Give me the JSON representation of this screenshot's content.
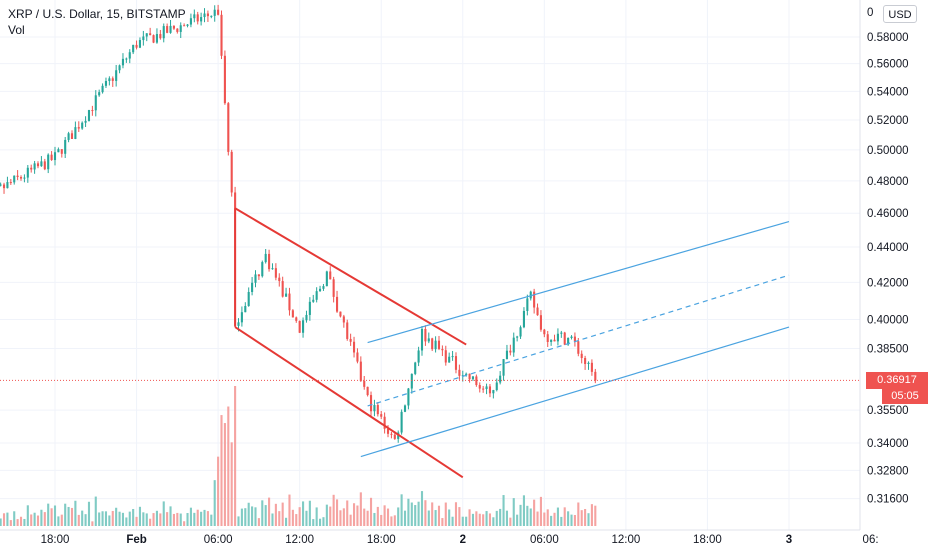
{
  "header": {
    "symbol_line": "XRP / U.S. Dollar, 15, BITSTAMP",
    "volume_label": "Vol"
  },
  "currency_button": "USD",
  "current_price_label": "0.36917",
  "countdown_label": "05:05",
  "colors": {
    "up": "#26a69a",
    "down": "#ef5350",
    "up_volume": "#80cbc4",
    "down_volume": "#f5a3a1",
    "falling_channel": "#e53935",
    "rising_channel": "#4aa3e0",
    "price_line": "#ef5350"
  },
  "chart_data": {
    "type": "candlestick",
    "y_axis": {
      "scale": "log",
      "range": [
        0.305,
        0.608
      ],
      "ticks": [
        "0.58000",
        "0.56000",
        "0.54000",
        "0.52000",
        "0.50000",
        "0.48000",
        "0.46000",
        "0.44000",
        "0.42000",
        "0.40000",
        "0.38500",
        "0.35500",
        "0.34000",
        "0.32800",
        "0.31600"
      ]
    },
    "x_axis": {
      "ticks": [
        "18:00",
        "Feb",
        "06:00",
        "12:00",
        "18:00",
        "2",
        "06:00",
        "12:00",
        "18:00",
        "3",
        "06:"
      ]
    },
    "current_price": 0.36917,
    "key_points": [
      {
        "time": "Jan 31 12:00",
        "price": 0.465
      },
      {
        "time": "Jan 31 18:00",
        "price": 0.495
      },
      {
        "time": "Feb 1 00:00",
        "price": 0.575
      },
      {
        "time": "Feb 1 06:00",
        "price": 0.6
      },
      {
        "time": "Feb 1 07:00",
        "price": 0.47
      },
      {
        "time": "Feb 1 07:15",
        "price": 0.398
      },
      {
        "time": "Feb 1 09:30",
        "price": 0.435
      },
      {
        "time": "Feb 1 12:00",
        "price": 0.395
      },
      {
        "time": "Feb 1 14:00",
        "price": 0.425
      },
      {
        "time": "Feb 1 17:00",
        "price": 0.36
      },
      {
        "time": "Feb 1 19:00",
        "price": 0.341
      },
      {
        "time": "Feb 1 21:00",
        "price": 0.393
      },
      {
        "time": "Feb 2 00:00",
        "price": 0.373
      },
      {
        "time": "Feb 2 02:00",
        "price": 0.362
      },
      {
        "time": "Feb 2 05:00",
        "price": 0.412
      },
      {
        "time": "Feb 2 06:00",
        "price": 0.392
      },
      {
        "time": "Feb 2 08:00",
        "price": 0.39
      },
      {
        "time": "Feb 2 09:45",
        "price": 0.369
      }
    ],
    "falling_channel": {
      "upper": [
        {
          "time": "Feb 1 07:15",
          "price": 0.463
        },
        {
          "time": "Feb 2 00:15",
          "price": 0.387
        }
      ],
      "lower": [
        {
          "time": "Feb 1 07:15",
          "price": 0.396
        },
        {
          "time": "Feb 2 00:00",
          "price": 0.325
        }
      ]
    },
    "rising_channel": {
      "upper": [
        {
          "time": "Feb 1 17:00",
          "price": 0.388
        },
        {
          "time": "Feb 3 00:00",
          "price": 0.455
        }
      ],
      "middle": [
        {
          "time": "Feb 1 17:00",
          "price": 0.357
        },
        {
          "time": "Feb 3 00:00",
          "price": 0.424
        }
      ],
      "lower": [
        {
          "time": "Feb 1 16:30",
          "price": 0.334
        },
        {
          "time": "Feb 3 00:00",
          "price": 0.396
        }
      ]
    }
  }
}
